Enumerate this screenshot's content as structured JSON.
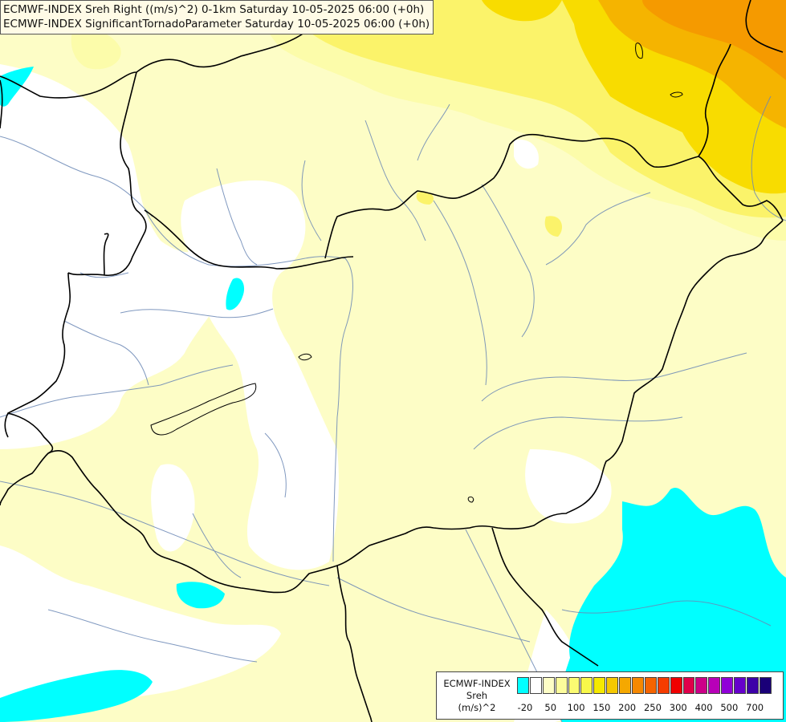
{
  "title": {
    "line1": "ECMWF-INDEX Sreh Right ((m/s)^2) 0-1km Saturday 10-05-2025 06:00 (+0h)",
    "line2": "ECMWF-INDEX SignificantTornadoParameter Saturday 10-05-2025 06:00 (+0h)"
  },
  "legend": {
    "source": "ECMWF-INDEX",
    "variable": "Sreh",
    "unit": "(m/s)^2",
    "colors": [
      "#00ffff",
      "#ffffff",
      "#fdfdc6",
      "#fcfc9c",
      "#fbfb72",
      "#f8f84a",
      "#f5e900",
      "#f5c800",
      "#f5a800",
      "#f58800",
      "#f56400",
      "#f53c00",
      "#f00000",
      "#e0004a",
      "#cc0088",
      "#b800b8",
      "#9000d8",
      "#6600cc",
      "#3d00a8",
      "#1a0078"
    ],
    "ticks": [
      "-20",
      "50",
      "100",
      "150",
      "200",
      "250",
      "300",
      "400",
      "500",
      "700"
    ],
    "colors_meaning": {
      "cyan": "#00ffff",
      "white": "#ffffff",
      "pale_yellow": "#fdfdc6",
      "light_yellow": "#fcfcaa",
      "yellow": "#fbf36a",
      "gold": "#f8dc00",
      "orange": "#f5b400",
      "deep_orange": "#f59a00"
    }
  }
}
